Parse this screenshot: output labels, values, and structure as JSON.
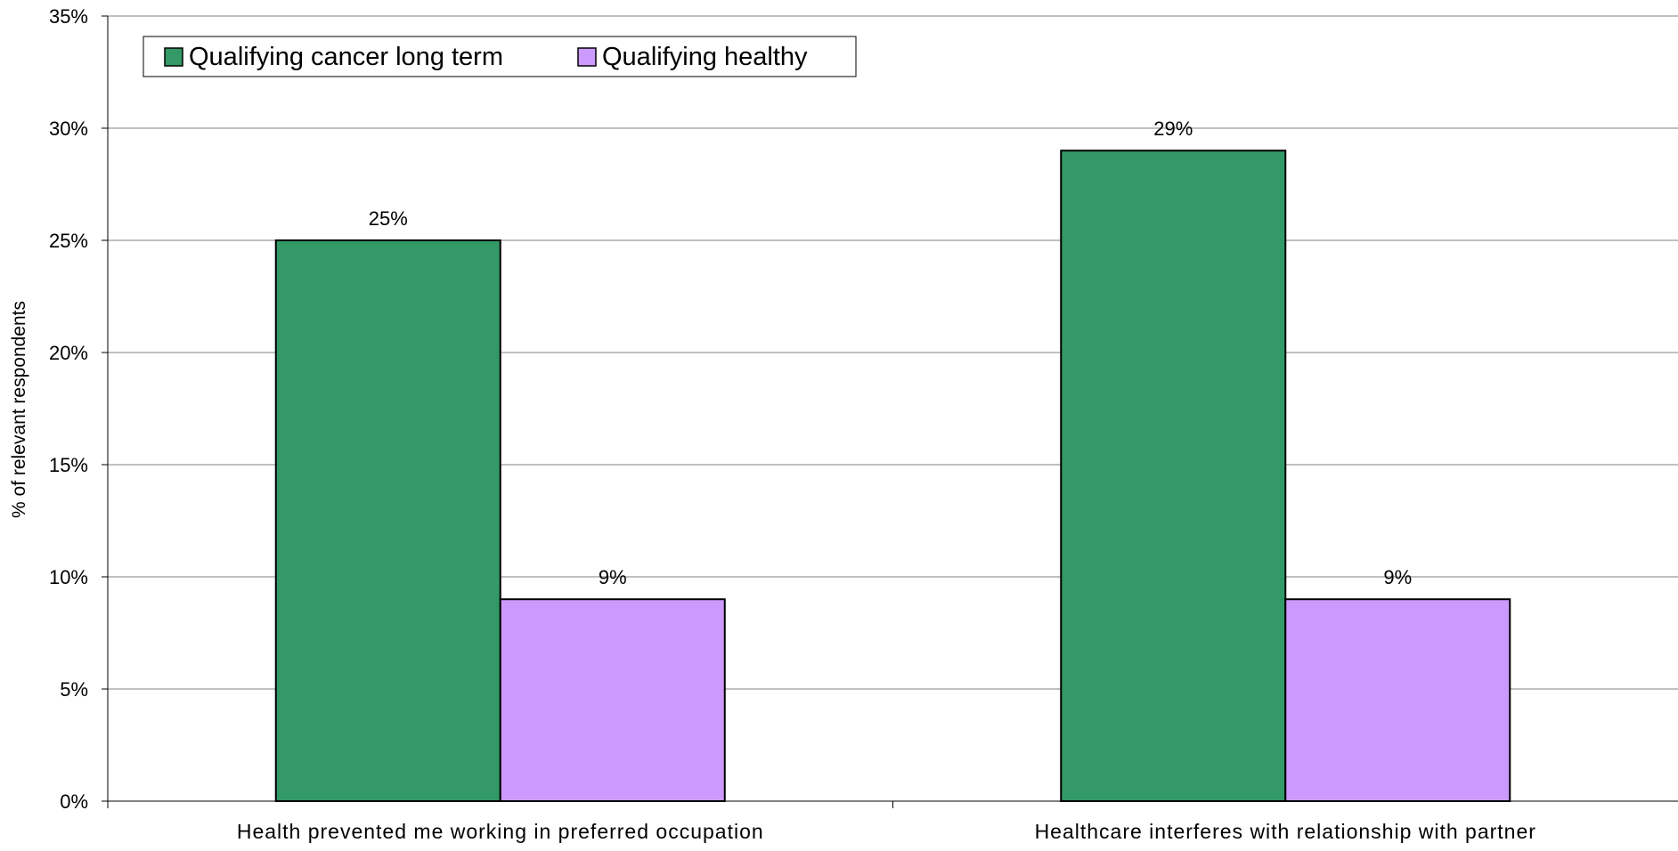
{
  "chart_data": {
    "type": "bar",
    "title": "",
    "xlabel": "",
    "ylabel": "% of relevant respondents",
    "ylim": [
      0,
      35
    ],
    "y_ticks": [
      0,
      5,
      10,
      15,
      20,
      25,
      30,
      35
    ],
    "y_tick_labels": [
      "0%",
      "5%",
      "10%",
      "15%",
      "20%",
      "25%",
      "30%",
      "35%"
    ],
    "grid": true,
    "legend_position": "top-left",
    "categories": [
      "Health prevented me working in preferred occupation",
      "Healthcare interferes with relationship with partner"
    ],
    "series": [
      {
        "name": "Qualifying cancer long term",
        "color": "#339966",
        "values": [
          25,
          29
        ],
        "value_labels": [
          "25%",
          "29%"
        ]
      },
      {
        "name": "Qualifying healthy",
        "color": "#CC99FF",
        "values": [
          9,
          9
        ],
        "value_labels": [
          "9%",
          "9%"
        ]
      }
    ]
  }
}
